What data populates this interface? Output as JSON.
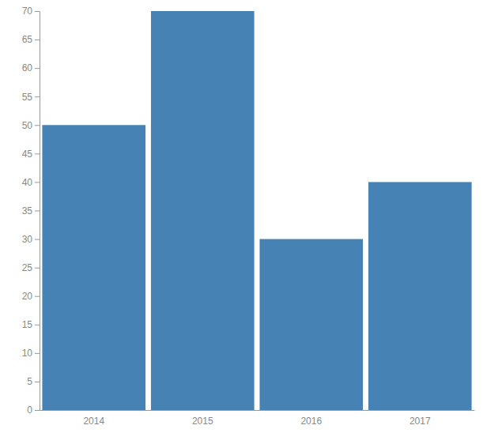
{
  "chart_data": {
    "type": "bar",
    "categories": [
      "2014",
      "2015",
      "2016",
      "2017"
    ],
    "values": [
      50,
      70,
      30,
      40
    ],
    "color": "#4682b4",
    "ylim": [
      0,
      70
    ],
    "yticks": [
      0,
      5,
      10,
      15,
      20,
      25,
      30,
      35,
      40,
      45,
      50,
      55,
      60,
      65,
      70
    ],
    "grid": false
  }
}
